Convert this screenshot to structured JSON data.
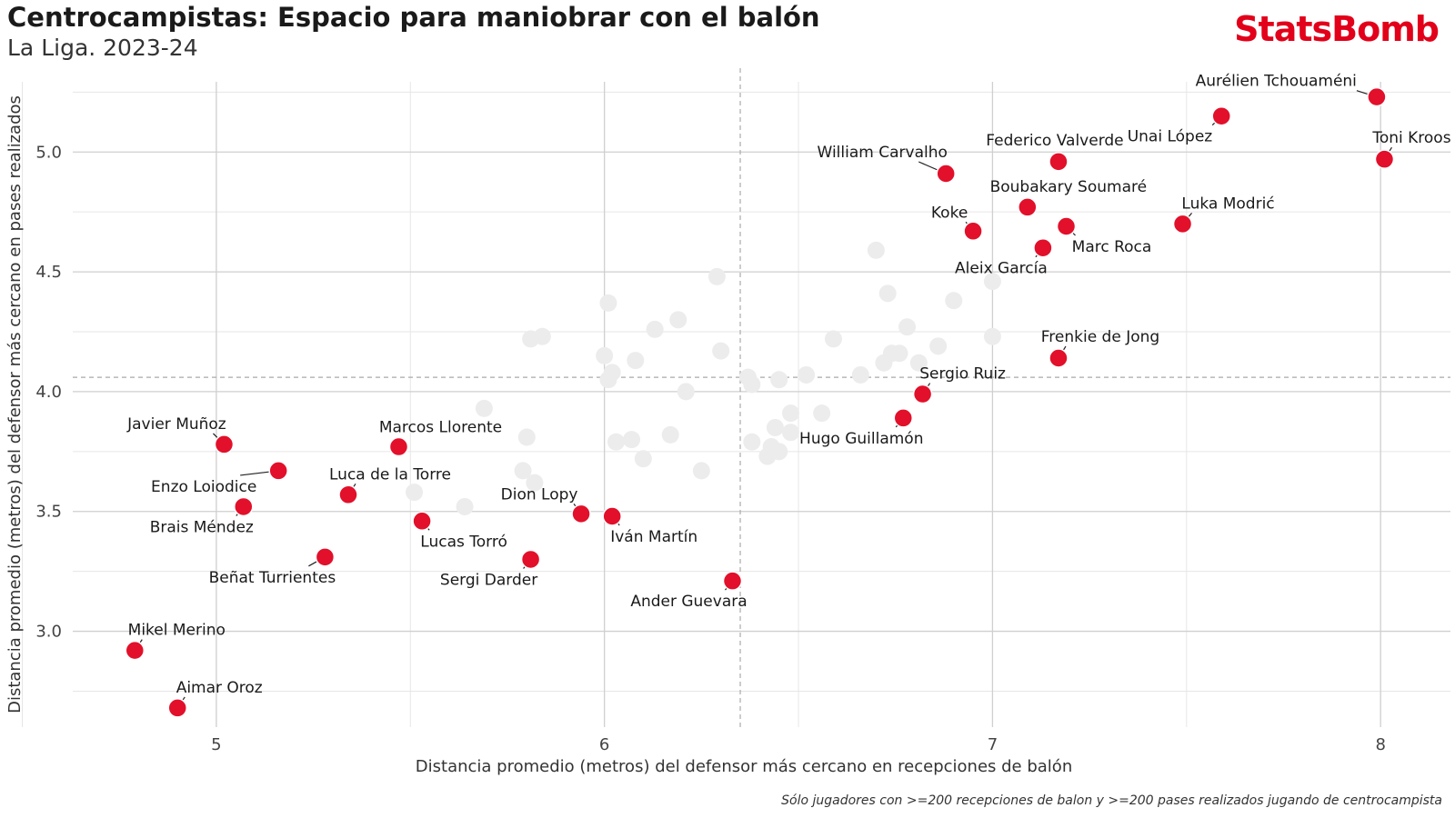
{
  "title": "Centrocampistas: Espacio para maniobrar con el balón",
  "subtitle": "La Liga. 2023-24",
  "brand": "StatsBomb",
  "caption": "Sólo jugadores con >=200 recepciones de balon y >=200 pases realizados jugando de centrocampista",
  "colors": {
    "highlight": "#e2102a",
    "background_points": "#ececec",
    "grid": "#d6d6d6",
    "brand": "#e2001a"
  },
  "chart_data": {
    "type": "scatter",
    "xlabel": "Distancia promedio (metros) del defensor más cercano en recepciones de balón",
    "ylabel": "Distancia promedio (metros) del defensor más cercano en pases realizados",
    "xlim": [
      4.63,
      8.18
    ],
    "ylim": [
      2.6,
      5.35
    ],
    "x_ticks": [
      5,
      6,
      7,
      8
    ],
    "y_ticks": [
      3.0,
      3.5,
      4.0,
      4.5,
      5.0
    ],
    "reference_lines": {
      "x_mean": 6.35,
      "y_mean": 4.06
    },
    "grid": true,
    "highlighted": [
      {
        "name": "Aurélien Tchouaméni",
        "x": 7.99,
        "y": 5.23
      },
      {
        "name": "Unai López",
        "x": 7.59,
        "y": 5.15
      },
      {
        "name": "Toni Kroos",
        "x": 8.01,
        "y": 4.97
      },
      {
        "name": "Federico Valverde",
        "x": 7.17,
        "y": 4.96
      },
      {
        "name": "William Carvalho",
        "x": 6.88,
        "y": 4.91
      },
      {
        "name": "Boubakary Soumaré",
        "x": 7.09,
        "y": 4.77
      },
      {
        "name": "Luka Modrić",
        "x": 7.49,
        "y": 4.7
      },
      {
        "name": "Koke",
        "x": 6.95,
        "y": 4.67
      },
      {
        "name": "Marc Roca",
        "x": 7.19,
        "y": 4.69
      },
      {
        "name": "Aleix García",
        "x": 7.13,
        "y": 4.6
      },
      {
        "name": "Frenkie de Jong",
        "x": 7.17,
        "y": 4.14
      },
      {
        "name": "Sergio Ruiz",
        "x": 6.82,
        "y": 3.99
      },
      {
        "name": "Hugo Guillamón",
        "x": 6.77,
        "y": 3.89
      },
      {
        "name": "Javier Muñoz",
        "x": 5.02,
        "y": 3.78
      },
      {
        "name": "Marcos Llorente",
        "x": 5.47,
        "y": 3.77
      },
      {
        "name": "Enzo Loiodice",
        "x": 5.16,
        "y": 3.67
      },
      {
        "name": "Luca de la Torre",
        "x": 5.34,
        "y": 3.57
      },
      {
        "name": "Brais Méndez",
        "x": 5.07,
        "y": 3.52
      },
      {
        "name": "Dion Lopy",
        "x": 5.94,
        "y": 3.49
      },
      {
        "name": "Iván Martín",
        "x": 6.02,
        "y": 3.48
      },
      {
        "name": "Lucas Torró",
        "x": 5.53,
        "y": 3.46
      },
      {
        "name": "Beñat Turrientes",
        "x": 5.28,
        "y": 3.31
      },
      {
        "name": "Sergi Darder",
        "x": 5.81,
        "y": 3.3
      },
      {
        "name": "Ander Guevara",
        "x": 6.33,
        "y": 3.21
      },
      {
        "name": "Mikel Merino",
        "x": 4.79,
        "y": 2.92
      },
      {
        "name": "Aimar Oroz",
        "x": 4.9,
        "y": 2.68
      }
    ],
    "others": [
      {
        "x": 6.7,
        "y": 4.59
      },
      {
        "x": 6.29,
        "y": 4.48
      },
      {
        "x": 7.0,
        "y": 4.46
      },
      {
        "x": 6.73,
        "y": 4.41
      },
      {
        "x": 6.9,
        "y": 4.38
      },
      {
        "x": 6.01,
        "y": 4.37
      },
      {
        "x": 6.19,
        "y": 4.3
      },
      {
        "x": 6.13,
        "y": 4.26
      },
      {
        "x": 6.78,
        "y": 4.27
      },
      {
        "x": 5.84,
        "y": 4.23
      },
      {
        "x": 5.81,
        "y": 4.22
      },
      {
        "x": 6.59,
        "y": 4.22
      },
      {
        "x": 7.0,
        "y": 4.23
      },
      {
        "x": 6.86,
        "y": 4.19
      },
      {
        "x": 6.3,
        "y": 4.17
      },
      {
        "x": 6.74,
        "y": 4.16
      },
      {
        "x": 6.76,
        "y": 4.16
      },
      {
        "x": 6.0,
        "y": 4.15
      },
      {
        "x": 6.08,
        "y": 4.13
      },
      {
        "x": 6.72,
        "y": 4.12
      },
      {
        "x": 6.81,
        "y": 4.12
      },
      {
        "x": 6.02,
        "y": 4.08
      },
      {
        "x": 6.52,
        "y": 4.07
      },
      {
        "x": 6.66,
        "y": 4.07
      },
      {
        "x": 6.37,
        "y": 4.06
      },
      {
        "x": 6.01,
        "y": 4.05
      },
      {
        "x": 6.45,
        "y": 4.05
      },
      {
        "x": 6.38,
        "y": 4.03
      },
      {
        "x": 6.21,
        "y": 4.0
      },
      {
        "x": 5.69,
        "y": 3.93
      },
      {
        "x": 6.48,
        "y": 3.91
      },
      {
        "x": 6.56,
        "y": 3.91
      },
      {
        "x": 6.44,
        "y": 3.85
      },
      {
        "x": 6.48,
        "y": 3.83
      },
      {
        "x": 6.17,
        "y": 3.82
      },
      {
        "x": 5.8,
        "y": 3.81
      },
      {
        "x": 6.07,
        "y": 3.8
      },
      {
        "x": 6.03,
        "y": 3.79
      },
      {
        "x": 6.38,
        "y": 3.79
      },
      {
        "x": 6.43,
        "y": 3.77
      },
      {
        "x": 6.45,
        "y": 3.75
      },
      {
        "x": 6.42,
        "y": 3.73
      },
      {
        "x": 6.1,
        "y": 3.72
      },
      {
        "x": 5.79,
        "y": 3.67
      },
      {
        "x": 6.25,
        "y": 3.67
      },
      {
        "x": 5.82,
        "y": 3.62
      },
      {
        "x": 5.51,
        "y": 3.58
      },
      {
        "x": 5.64,
        "y": 3.52
      }
    ]
  }
}
